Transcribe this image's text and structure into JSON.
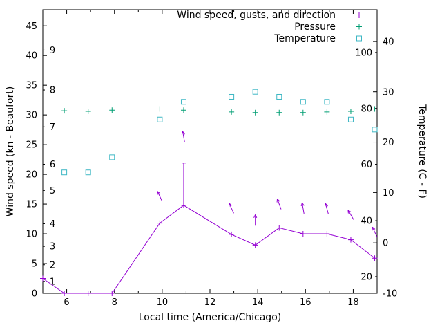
{
  "colors": {
    "wind": "#9400d3",
    "pressure": "#009e73",
    "temperature": "#3db7c4",
    "axis": "#000000",
    "background": "#ffffff"
  },
  "chart_data": {
    "type": "line",
    "title": "",
    "xlabel": "Local time (America/Chicago)",
    "ylabel_left": "Wind speed (kn - Beaufort)",
    "ylabel_right": "Temperature (C - F)",
    "x_range": [
      5,
      19
    ],
    "x_ticks": [
      6,
      8,
      10,
      12,
      14,
      16,
      18
    ],
    "left_axis_kn": {
      "min": 0,
      "max": 47.7,
      "ticks": [
        0,
        5,
        10,
        15,
        20,
        25,
        30,
        35,
        40,
        45
      ]
    },
    "beaufort_labels": [
      {
        "label": "1",
        "kn": 2.0
      },
      {
        "label": "2",
        "kn": 4.8
      },
      {
        "label": "3",
        "kn": 7.9
      },
      {
        "label": "4",
        "kn": 11.7
      },
      {
        "label": "5",
        "kn": 17.3
      },
      {
        "label": "6",
        "kn": 21.7
      },
      {
        "label": "7",
        "kn": 28.0
      },
      {
        "label": "8",
        "kn": 34.2
      },
      {
        "label": "9",
        "kn": 40.9
      }
    ],
    "right_axis_c": {
      "min": -10,
      "max": 46.3,
      "ticks": [
        -10,
        0,
        10,
        20,
        30,
        40
      ]
    },
    "fahrenheit_labels": [
      {
        "label": "20",
        "c": -6.7
      },
      {
        "label": "40",
        "c": 4.4
      },
      {
        "label": "60",
        "c": 15.6
      },
      {
        "label": "80",
        "c": 26.7
      },
      {
        "label": "100",
        "c": 37.8
      }
    ],
    "legend": [
      {
        "label": "Wind speed, gusts, and direction",
        "series": "wind",
        "marker": "line-plus"
      },
      {
        "label": "Pressure",
        "series": "pressure",
        "marker": "plus"
      },
      {
        "label": "Temperature",
        "series": "temperature",
        "marker": "open-square"
      }
    ],
    "series": {
      "wind": {
        "axis": "left",
        "x": [
          5.0,
          5.9,
          6.9,
          7.9,
          9.9,
          10.9,
          12.9,
          13.9,
          14.9,
          15.9,
          16.9,
          17.9,
          18.9
        ],
        "speed_kn": [
          2.5,
          0,
          0,
          0,
          11.8,
          14.8,
          9.9,
          8.1,
          11.0,
          10.0,
          10.0,
          9.0,
          5.9
        ],
        "gust_kn": [
          2.5,
          0,
          0,
          0,
          11.8,
          21.9,
          9.9,
          8.1,
          11.0,
          10.0,
          10.0,
          9.0,
          5.9
        ]
      },
      "wind_direction_arrows": [
        {
          "x": 9.9,
          "kn": 16.3,
          "angle_deg": 115
        },
        {
          "x": 10.9,
          "kn": 26.3,
          "angle_deg": 100
        },
        {
          "x": 12.9,
          "kn": 14.3,
          "angle_deg": 115
        },
        {
          "x": 13.9,
          "kn": 12.3,
          "angle_deg": 90
        },
        {
          "x": 14.9,
          "kn": 15.0,
          "angle_deg": 110
        },
        {
          "x": 15.9,
          "kn": 14.3,
          "angle_deg": 100
        },
        {
          "x": 16.9,
          "kn": 14.2,
          "angle_deg": 105
        },
        {
          "x": 17.9,
          "kn": 13.2,
          "angle_deg": 120
        },
        {
          "x": 18.9,
          "kn": 10.3,
          "angle_deg": 115
        }
      ],
      "pressure": {
        "axis": "left",
        "x": [
          5.9,
          6.9,
          7.9,
          9.9,
          10.9,
          12.9,
          13.9,
          14.9,
          15.9,
          16.9,
          17.9,
          18.9
        ],
        "values": [
          30.7,
          30.6,
          30.8,
          31.0,
          30.8,
          30.5,
          30.4,
          30.4,
          30.4,
          30.5,
          30.6,
          31.0
        ]
      },
      "temperature": {
        "axis": "right",
        "x": [
          5.9,
          6.9,
          7.9,
          9.9,
          10.9,
          12.9,
          13.9,
          14.9,
          15.9,
          16.9,
          17.9,
          18.9
        ],
        "values_c": [
          14.0,
          14.0,
          17.0,
          24.5,
          28.0,
          29.0,
          30.0,
          29.0,
          28.0,
          28.0,
          24.5,
          22.5
        ]
      }
    }
  }
}
